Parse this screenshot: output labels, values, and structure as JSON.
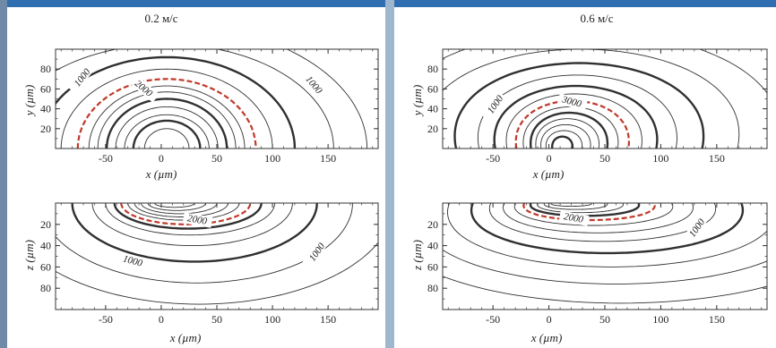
{
  "colors": {
    "contour": "#303030",
    "highlight": "#c0392b",
    "frame": "#333333",
    "header_strip": "#2f6fb1",
    "side_stripe": "#6f8aa6"
  },
  "chart_data": [
    {
      "type": "contour",
      "title": "0.2 м/с",
      "xlabel": "x (µm)",
      "ylabel": "y (µm)",
      "xlim": [
        -95,
        195
      ],
      "ylim": [
        0,
        100
      ],
      "x_ticks": [
        "-50",
        "0",
        "50",
        "100",
        "150"
      ],
      "y_ticks": [
        "20",
        "40",
        "60",
        "80"
      ],
      "contour_labels": [
        "1000",
        "1000",
        "2000"
      ],
      "highlight_level": "dashed red isotherm"
    },
    {
      "type": "contour",
      "title": "0.6 м/с",
      "xlabel": "x (µm)",
      "ylabel": "y (µm)",
      "xlim": [
        -95,
        195
      ],
      "ylim": [
        0,
        100
      ],
      "x_ticks": [
        "-50",
        "0",
        "50",
        "100",
        "150"
      ],
      "y_ticks": [
        "20",
        "40",
        "60",
        "80"
      ],
      "contour_labels": [
        "1000",
        "3000"
      ],
      "highlight_level": "dashed red isotherm"
    },
    {
      "type": "contour",
      "title": "",
      "xlabel": "x (µm)",
      "ylabel": "z (µm)",
      "xlim": [
        -95,
        195
      ],
      "ylim": [
        0,
        100
      ],
      "x_ticks": [
        "-50",
        "0",
        "50",
        "100",
        "150"
      ],
      "y_ticks": [
        "20",
        "40",
        "60",
        "80"
      ],
      "contour_labels": [
        "2000",
        "1000",
        "1000"
      ],
      "highlight_level": "dashed red isotherm"
    },
    {
      "type": "contour",
      "title": "",
      "xlabel": "x (µm)",
      "ylabel": "z (µm)",
      "xlim": [
        -95,
        195
      ],
      "ylim": [
        0,
        100
      ],
      "x_ticks": [
        "-50",
        "0",
        "50",
        "100",
        "150"
      ],
      "y_ticks": [
        "20",
        "40",
        "60",
        "80"
      ],
      "contour_labels": [
        "2000",
        "1000"
      ],
      "highlight_level": "dashed red isotherm"
    }
  ]
}
